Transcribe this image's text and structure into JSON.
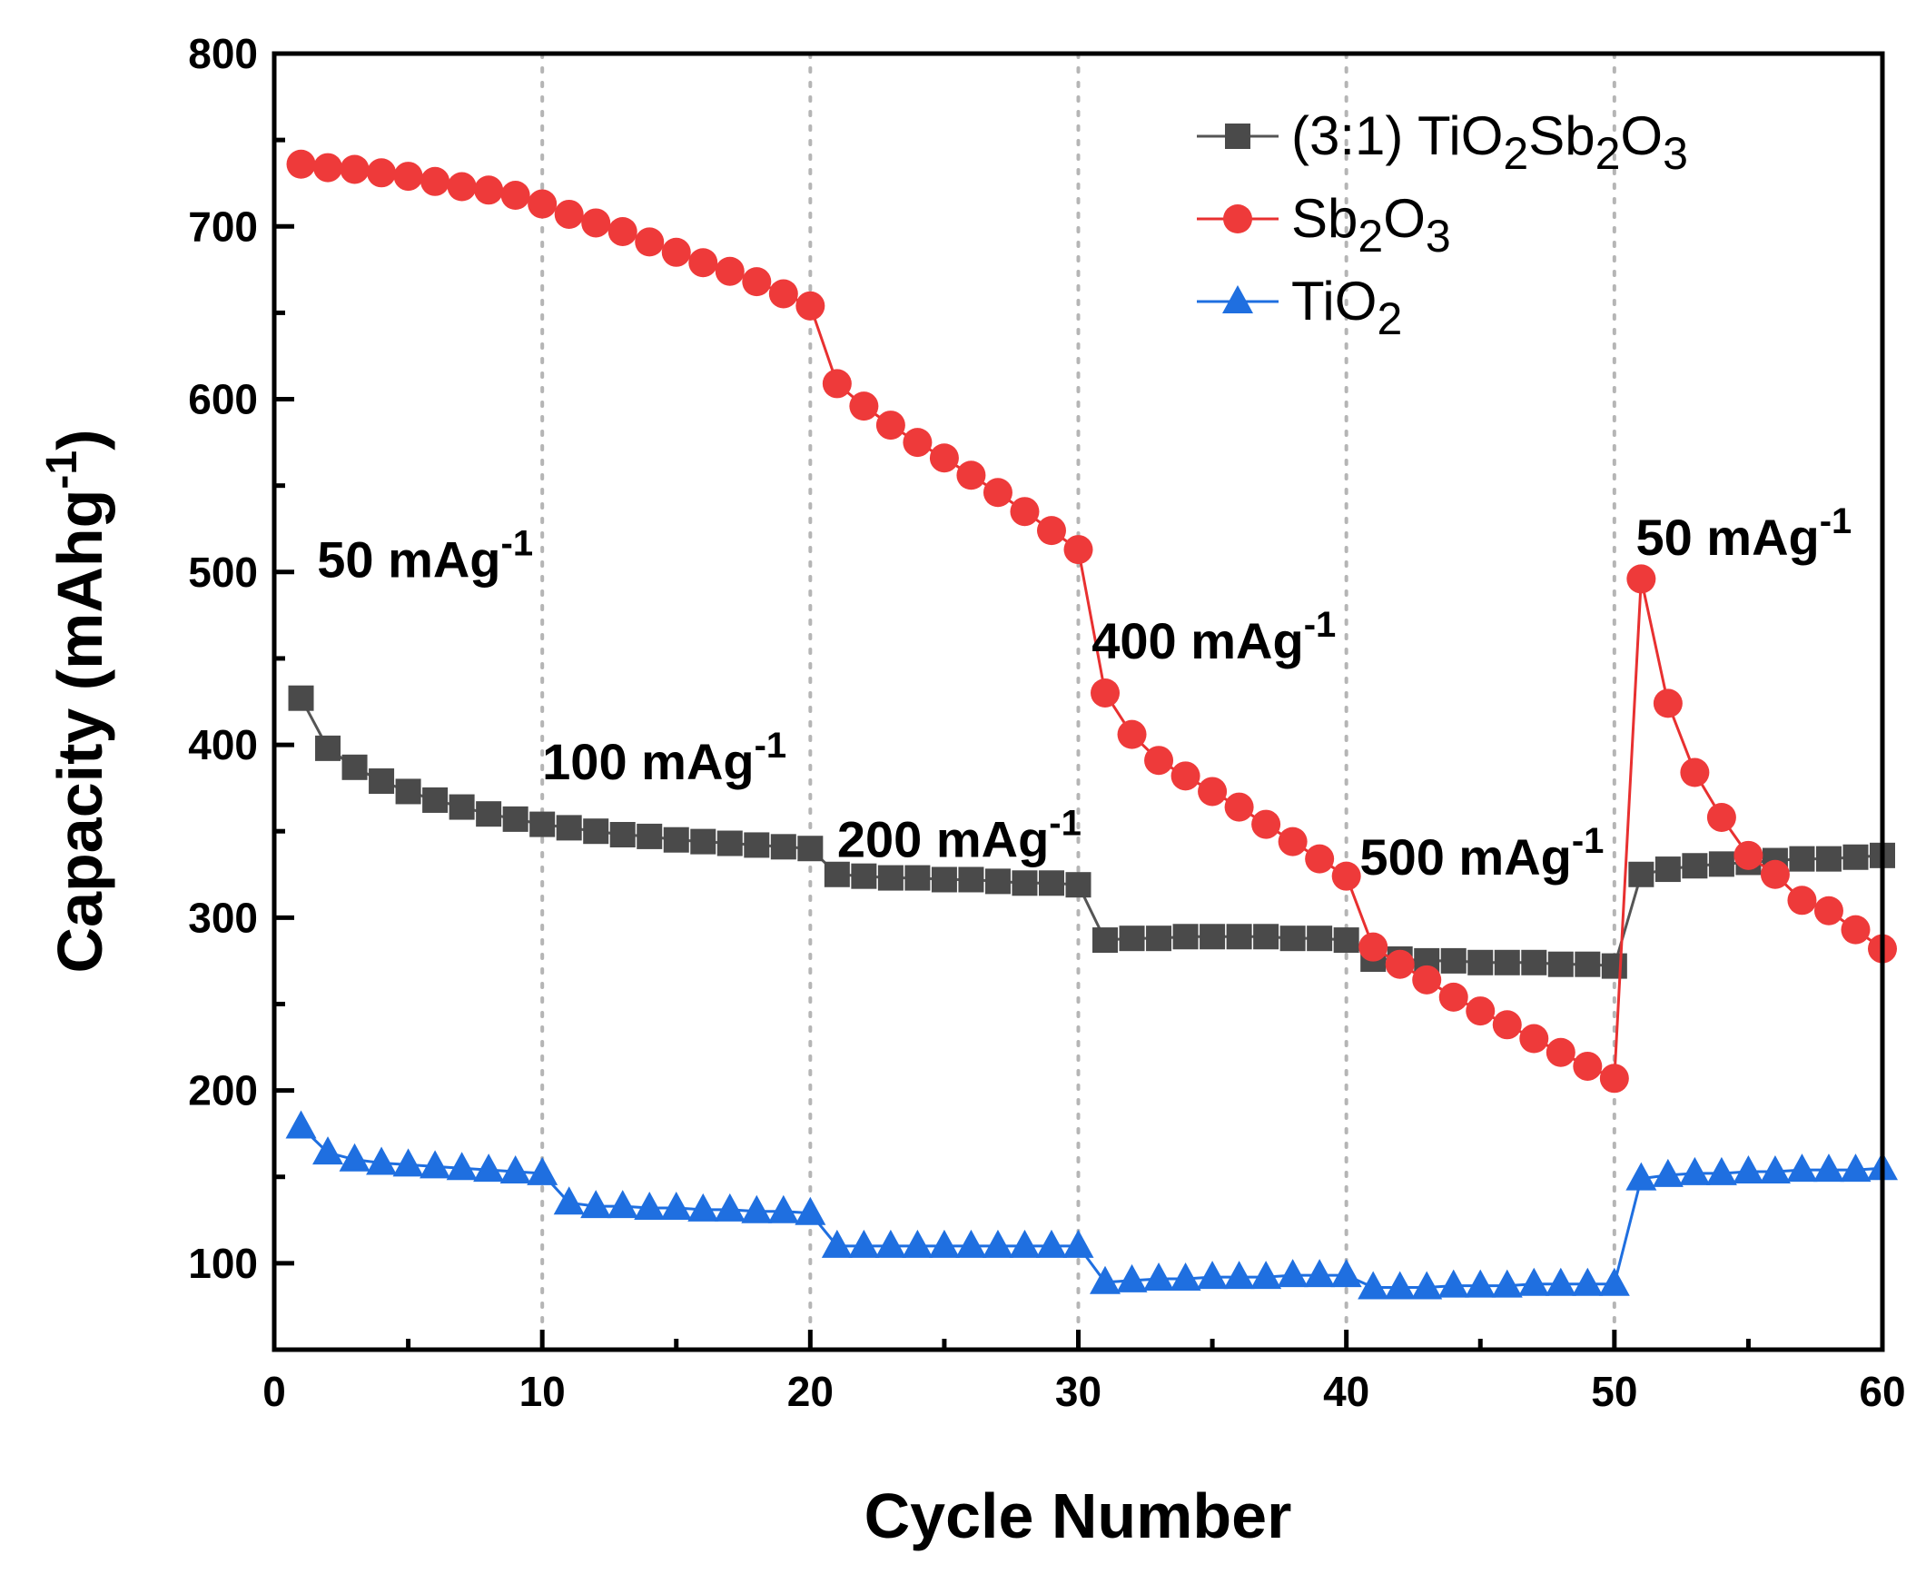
{
  "chart_data": {
    "type": "line",
    "title": "",
    "xlabel": "Cycle Number",
    "ylabel": {
      "main": "Capacity (mAhg",
      "sup": "-1",
      "close": ")"
    },
    "xlim": [
      0,
      60
    ],
    "ylim": [
      50,
      800
    ],
    "xticks": [
      0,
      10,
      20,
      30,
      40,
      50,
      60
    ],
    "yticks": [
      100,
      200,
      300,
      400,
      500,
      600,
      700,
      800
    ],
    "grid": "vertical dotted lines at x = 10, 20, 30, 40, 50",
    "legend_position": "top-right",
    "series": [
      {
        "name": "(3:1) TiO2Sb2O3",
        "legend_parts": [
          [
            "(3:1) TiO",
            false
          ],
          [
            "2",
            true
          ],
          [
            "Sb",
            false
          ],
          [
            "2",
            true
          ],
          [
            "O",
            false
          ],
          [
            "3",
            true
          ]
        ],
        "marker": "square",
        "color": "#4a4a4a",
        "line_color": "#555555",
        "x": [
          1,
          2,
          3,
          4,
          5,
          6,
          7,
          8,
          9,
          10,
          11,
          12,
          13,
          14,
          15,
          16,
          17,
          18,
          19,
          20,
          21,
          22,
          23,
          24,
          25,
          26,
          27,
          28,
          29,
          30,
          31,
          32,
          33,
          34,
          35,
          36,
          37,
          38,
          39,
          40,
          41,
          42,
          43,
          44,
          45,
          46,
          47,
          48,
          49,
          50,
          51,
          52,
          53,
          54,
          55,
          56,
          57,
          58,
          59,
          60
        ],
        "values": [
          427,
          398,
          387,
          379,
          373,
          368,
          364,
          360,
          357,
          354,
          352,
          350,
          348,
          347,
          345,
          344,
          343,
          342,
          341,
          340,
          325,
          324,
          323,
          323,
          322,
          322,
          321,
          320,
          320,
          319,
          287,
          288,
          288,
          289,
          289,
          289,
          289,
          288,
          288,
          287,
          276,
          276,
          275,
          275,
          274,
          274,
          274,
          273,
          273,
          272,
          325,
          328,
          330,
          331,
          332,
          333,
          334,
          334,
          335,
          336
        ]
      },
      {
        "name": "Sb2O3",
        "legend_parts": [
          [
            "Sb",
            false
          ],
          [
            "2",
            true
          ],
          [
            "O",
            false
          ],
          [
            "3",
            true
          ]
        ],
        "marker": "circle",
        "color": "#ee3a3a",
        "line_color": "#e83030",
        "x": [
          1,
          2,
          3,
          4,
          5,
          6,
          7,
          8,
          9,
          10,
          11,
          12,
          13,
          14,
          15,
          16,
          17,
          18,
          19,
          20,
          21,
          22,
          23,
          24,
          25,
          26,
          27,
          28,
          29,
          30,
          31,
          32,
          33,
          34,
          35,
          36,
          37,
          38,
          39,
          40,
          41,
          42,
          43,
          44,
          45,
          46,
          47,
          48,
          49,
          50,
          51,
          52,
          53,
          54,
          55,
          56,
          57,
          58,
          59,
          60
        ],
        "values": [
          736,
          734,
          733,
          731,
          729,
          726,
          723,
          721,
          718,
          713,
          707,
          702,
          697,
          691,
          685,
          679,
          674,
          668,
          661,
          654,
          609,
          596,
          585,
          575,
          566,
          556,
          546,
          535,
          524,
          513,
          430,
          406,
          391,
          382,
          373,
          364,
          354,
          344,
          334,
          324,
          283,
          273,
          264,
          254,
          246,
          238,
          230,
          222,
          214,
          207,
          496,
          424,
          384,
          358,
          336,
          325,
          310,
          304,
          293,
          282
        ]
      },
      {
        "name": "TiO2",
        "legend_parts": [
          [
            "TiO",
            false
          ],
          [
            "2",
            true
          ]
        ],
        "marker": "triangle",
        "color": "#1f6fe0",
        "line_color": "#1f6fe0",
        "x": [
          1,
          2,
          3,
          4,
          5,
          6,
          7,
          8,
          9,
          10,
          11,
          12,
          13,
          14,
          15,
          16,
          17,
          18,
          19,
          20,
          21,
          22,
          23,
          24,
          25,
          26,
          27,
          28,
          29,
          30,
          31,
          32,
          33,
          34,
          35,
          36,
          37,
          38,
          39,
          40,
          41,
          42,
          43,
          44,
          45,
          46,
          47,
          48,
          49,
          50,
          51,
          52,
          53,
          54,
          55,
          56,
          57,
          58,
          59,
          60
        ],
        "values": [
          179,
          164,
          160,
          158,
          157,
          156,
          155,
          154,
          153,
          152,
          135,
          133,
          133,
          132,
          132,
          131,
          131,
          130,
          130,
          129,
          110,
          110,
          110,
          110,
          110,
          110,
          110,
          110,
          110,
          110,
          89,
          90,
          91,
          91,
          92,
          92,
          92,
          93,
          93,
          93,
          86,
          86,
          86,
          87,
          87,
          87,
          88,
          88,
          88,
          88,
          149,
          151,
          152,
          152,
          153,
          153,
          154,
          154,
          154,
          155
        ]
      }
    ],
    "annotations": [
      {
        "text": "50 mAg",
        "sup": "-1",
        "x": 1.6,
        "y": 497
      },
      {
        "text": "100 mAg",
        "sup": "-1",
        "x": 10.0,
        "y": 380
      },
      {
        "text": "200 mAg",
        "sup": "-1",
        "x": 21.0,
        "y": 335
      },
      {
        "text": "400 mAg",
        "sup": "-1",
        "x": 30.5,
        "y": 450
      },
      {
        "text": "500 mAg",
        "sup": "-1",
        "x": 40.5,
        "y": 325
      },
      {
        "text": "50 mAg",
        "sup": "-1",
        "x": 50.8,
        "y": 510
      }
    ]
  }
}
